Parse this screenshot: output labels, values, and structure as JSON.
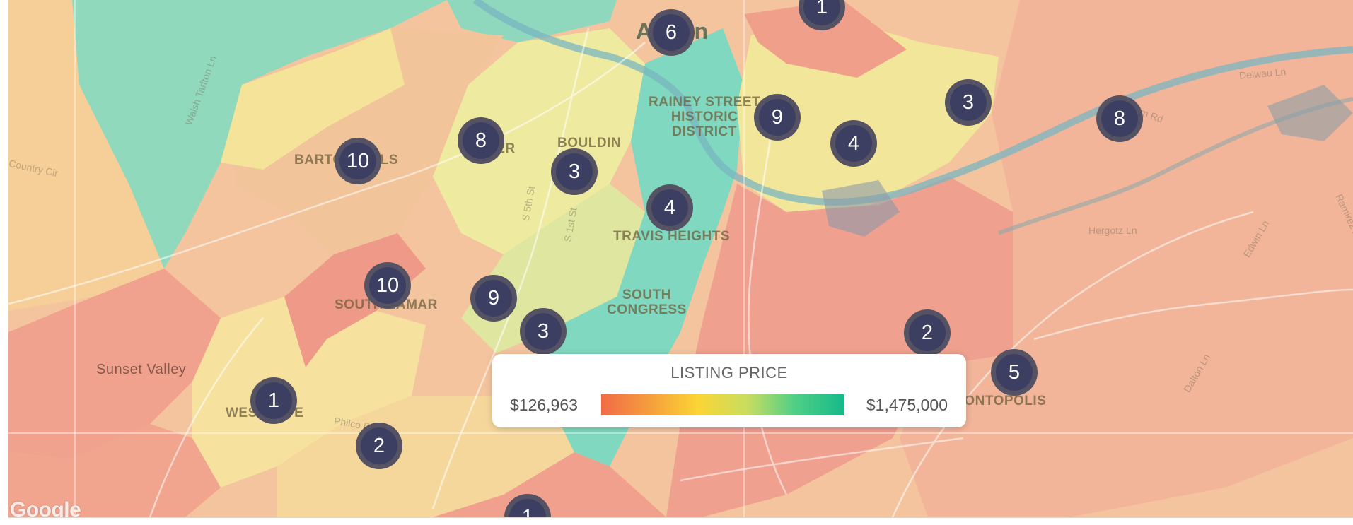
{
  "map": {
    "area_labels": [
      {
        "id": "austin",
        "text": "Austin",
        "kind": "city"
      },
      {
        "id": "rainey",
        "text": "RAINEY STREET\nHISTORIC\nDISTRICT",
        "kind": "neighborhood"
      },
      {
        "id": "bouldin",
        "text": "BOULDIN",
        "kind": "neighborhood"
      },
      {
        "id": "zilker",
        "text": "ZILKER",
        "kind": "neighborhood"
      },
      {
        "id": "barton-hills",
        "text": "BARTON HILLS",
        "kind": "neighborhood"
      },
      {
        "id": "travis-heights",
        "text": "TRAVIS HEIGHTS",
        "kind": "neighborhood"
      },
      {
        "id": "south-congress",
        "text": "SOUTH\nCONGRESS",
        "kind": "neighborhood"
      },
      {
        "id": "south-lamar",
        "text": "SOUTH LAMAR",
        "kind": "neighborhood"
      },
      {
        "id": "sunset-valley",
        "text": "Sunset Valley",
        "kind": "place"
      },
      {
        "id": "westgate",
        "text": "WESTGATE",
        "kind": "neighborhood"
      },
      {
        "id": "montopolis",
        "text": "MONTOPOLIS",
        "kind": "neighborhood"
      }
    ],
    "road_labels": [
      {
        "id": "walsh-tarlton",
        "text": "Walsh Tarlton Ln"
      },
      {
        "id": "country-cir",
        "text": "Country Cir"
      },
      {
        "id": "delwau",
        "text": "Delwau Ln"
      },
      {
        "id": "bolm",
        "text": "Bolm Rd"
      },
      {
        "id": "hergotz",
        "text": "Hergotz Ln"
      },
      {
        "id": "edwin",
        "text": "Edwin Ln"
      },
      {
        "id": "dalton",
        "text": "Dalton Ln"
      },
      {
        "id": "ramirez",
        "text": "Ramirez Ln"
      },
      {
        "id": "s-1st",
        "text": "S 1st St"
      },
      {
        "id": "s-5th",
        "text": "S 5th St"
      },
      {
        "id": "philco",
        "text": "Philco Dr"
      }
    ],
    "clusters": [
      {
        "id": "c1",
        "count": "1"
      },
      {
        "id": "c2",
        "count": "6"
      },
      {
        "id": "c3",
        "count": "3"
      },
      {
        "id": "c4",
        "count": "8"
      },
      {
        "id": "c5",
        "count": "9"
      },
      {
        "id": "c6",
        "count": "4"
      },
      {
        "id": "c7",
        "count": "8"
      },
      {
        "id": "c8",
        "count": "10"
      },
      {
        "id": "c9",
        "count": "3"
      },
      {
        "id": "c10",
        "count": "4"
      },
      {
        "id": "c11",
        "count": "10"
      },
      {
        "id": "c12",
        "count": "9"
      },
      {
        "id": "c13",
        "count": "3"
      },
      {
        "id": "c14",
        "count": "2"
      },
      {
        "id": "c15",
        "count": "5"
      },
      {
        "id": "c16",
        "count": "1"
      },
      {
        "id": "c17",
        "count": "2"
      },
      {
        "id": "c18",
        "count": "1"
      }
    ]
  },
  "legend": {
    "title": "LISTING PRICE",
    "min_label": "$126,963",
    "max_label": "$1,475,000",
    "gradient_colors": [
      "#f26b47",
      "#f59e3d",
      "#fbd535",
      "#c9dd5f",
      "#4fcf86",
      "#16b98a"
    ]
  },
  "attribution": {
    "logo": "Google"
  },
  "colors": {
    "cluster_fill": "#3c3f62",
    "cluster_ring": "#5f5a64",
    "low_price": "#f08a80",
    "mid_price": "#f7e08a",
    "high_price": "#7ed9b8"
  }
}
